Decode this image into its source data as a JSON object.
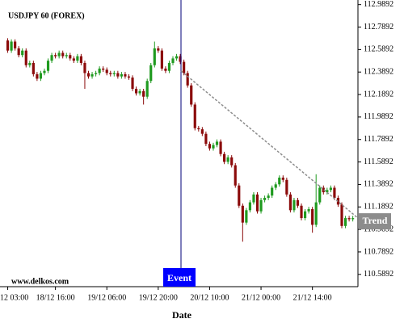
{
  "chart_data": {
    "type": "candlestick",
    "title": "USDJPY 60 (FOREX)",
    "xlabel": "Date",
    "watermark": "www.delkos.com",
    "up_color": "#1f9a1f",
    "down_color": "#8b0a0a",
    "x": [
      0,
      1,
      2,
      3,
      4,
      5,
      6,
      7,
      8,
      9,
      10,
      11,
      12,
      13,
      14,
      15,
      16,
      17,
      18,
      19,
      20,
      21,
      22,
      23,
      24,
      25,
      26,
      27,
      28,
      29,
      30,
      31,
      32,
      33,
      34,
      35,
      36,
      37,
      38,
      39,
      40,
      41,
      42,
      43,
      44,
      45,
      46,
      47,
      48,
      49,
      50,
      51,
      52,
      53,
      54,
      55,
      56,
      57,
      58,
      59,
      60,
      61,
      62,
      63,
      64,
      65,
      66,
      67,
      68,
      69,
      70,
      71,
      72,
      73,
      74,
      75,
      76,
      77,
      78,
      79,
      80,
      81,
      82,
      83,
      84,
      85,
      86,
      87,
      88,
      89,
      90,
      91,
      92,
      93,
      94
    ],
    "open": [
      112.67,
      112.58,
      112.66,
      112.6,
      112.54,
      112.58,
      112.45,
      112.47,
      112.37,
      112.33,
      112.38,
      112.4,
      112.49,
      112.54,
      112.53,
      112.56,
      112.53,
      112.54,
      112.51,
      112.49,
      112.53,
      112.47,
      112.38,
      112.35,
      112.37,
      112.38,
      112.42,
      112.41,
      112.38,
      112.37,
      112.38,
      112.35,
      112.37,
      112.35,
      112.34,
      112.24,
      112.2,
      112.22,
      112.17,
      112.31,
      112.45,
      112.6,
      112.58,
      112.42,
      112.4,
      112.47,
      112.51,
      112.53,
      112.48,
      112.38,
      112.27,
      112.1,
      111.89,
      111.88,
      111.84,
      111.75,
      111.71,
      111.74,
      111.77,
      111.66,
      111.59,
      111.63,
      111.56,
      111.38,
      111.2,
      111.05,
      111.16,
      111.23,
      111.3,
      111.15,
      111.25,
      111.27,
      111.29,
      111.36,
      111.39,
      111.45,
      111.43,
      111.3,
      111.16,
      111.25,
      111.2,
      111.09,
      111.15,
      111.17,
      111.03,
      111.23,
      111.36,
      111.32,
      111.34,
      111.36,
      111.27,
      111.21,
      111.02,
      111.09,
      111.08
    ],
    "high": [
      112.69,
      112.68,
      112.68,
      112.62,
      112.6,
      112.6,
      112.49,
      112.49,
      112.39,
      112.4,
      112.42,
      112.51,
      112.56,
      112.56,
      112.58,
      112.58,
      112.56,
      112.56,
      112.53,
      112.55,
      112.55,
      112.49,
      112.4,
      112.39,
      112.4,
      112.44,
      112.44,
      112.43,
      112.4,
      112.4,
      112.4,
      112.39,
      112.39,
      112.37,
      112.36,
      112.26,
      112.24,
      112.24,
      112.33,
      112.47,
      112.66,
      112.62,
      112.6,
      112.44,
      112.49,
      112.53,
      112.55,
      112.55,
      112.5,
      112.4,
      112.29,
      112.12,
      111.91,
      111.9,
      111.86,
      111.77,
      111.76,
      111.79,
      111.79,
      111.68,
      111.65,
      111.65,
      111.58,
      111.4,
      111.22,
      111.18,
      111.25,
      111.32,
      111.32,
      111.27,
      111.29,
      111.31,
      111.38,
      111.41,
      111.47,
      111.47,
      111.45,
      111.32,
      111.27,
      111.27,
      111.22,
      111.17,
      111.19,
      111.19,
      111.48,
      111.38,
      111.38,
      111.36,
      111.38,
      111.38,
      111.29,
      111.23,
      111.11,
      111.11,
      111.11
    ],
    "low": [
      112.56,
      112.56,
      112.58,
      112.52,
      112.52,
      112.43,
      112.43,
      112.35,
      112.31,
      112.31,
      112.36,
      112.38,
      112.47,
      112.51,
      112.51,
      112.51,
      112.51,
      112.49,
      112.47,
      112.47,
      112.45,
      112.24,
      112.33,
      112.33,
      112.35,
      112.36,
      112.39,
      112.36,
      112.35,
      112.35,
      112.33,
      112.33,
      112.33,
      112.32,
      112.22,
      112.18,
      112.18,
      112.1,
      112.15,
      112.29,
      112.43,
      112.56,
      112.4,
      112.38,
      112.38,
      112.45,
      112.49,
      112.46,
      112.36,
      112.25,
      112.08,
      111.87,
      111.86,
      111.82,
      111.73,
      111.69,
      111.69,
      111.72,
      111.64,
      111.57,
      111.57,
      111.54,
      111.36,
      111.18,
      110.88,
      111.03,
      111.14,
      111.21,
      111.13,
      111.13,
      111.23,
      111.25,
      111.27,
      111.34,
      111.37,
      111.41,
      111.28,
      111.14,
      111.14,
      111.18,
      111.07,
      111.07,
      111.13,
      110.96,
      111.01,
      111.21,
      111.3,
      111.3,
      111.32,
      111.25,
      111.19,
      111.0,
      111.0,
      111.06,
      111.06
    ],
    "close": [
      112.58,
      112.66,
      112.6,
      112.54,
      112.58,
      112.45,
      112.47,
      112.37,
      112.33,
      112.38,
      112.4,
      112.49,
      112.54,
      112.53,
      112.56,
      112.53,
      112.54,
      112.51,
      112.49,
      112.53,
      112.47,
      112.38,
      112.35,
      112.37,
      112.38,
      112.42,
      112.41,
      112.38,
      112.37,
      112.38,
      112.35,
      112.37,
      112.35,
      112.34,
      112.24,
      112.2,
      112.22,
      112.17,
      112.31,
      112.45,
      112.6,
      112.58,
      112.42,
      112.4,
      112.47,
      112.51,
      112.53,
      112.48,
      112.38,
      112.27,
      112.1,
      111.89,
      111.88,
      111.84,
      111.75,
      111.71,
      111.74,
      111.77,
      111.66,
      111.59,
      111.63,
      111.56,
      111.38,
      111.2,
      111.05,
      111.16,
      111.23,
      111.3,
      111.15,
      111.25,
      111.27,
      111.29,
      111.36,
      111.39,
      111.45,
      111.43,
      111.3,
      111.16,
      111.25,
      111.2,
      111.09,
      111.15,
      111.17,
      111.03,
      111.23,
      111.36,
      111.32,
      111.34,
      111.36,
      111.27,
      111.21,
      111.02,
      111.09,
      111.08,
      111.09
    ],
    "xlim": [
      -1,
      95.4
    ],
    "ylim": [
      110.48,
      113.03
    ],
    "yticks": [
      112.9892,
      112.7892,
      112.5892,
      112.3892,
      112.1892,
      111.9892,
      111.7892,
      111.5892,
      111.3892,
      111.1892,
      110.9892,
      110.7892,
      110.5892
    ],
    "xticks": [
      {
        "value": 0,
        "label": "12 03:00"
      },
      {
        "value": 13,
        "label": "18/12 16:00"
      },
      {
        "value": 27,
        "label": "19/12 06:00"
      },
      {
        "value": 41,
        "label": "19/12 20:00"
      },
      {
        "value": 55,
        "label": "20/12 10:00"
      },
      {
        "value": 69,
        "label": "21/12 00:00"
      },
      {
        "value": 83,
        "label": "21/12 14:00"
      }
    ],
    "event": {
      "label": "Event",
      "x": 47.2,
      "color": "#0000ff"
    },
    "trend": {
      "label": "Trend",
      "x": [
        47.2,
        95.4
      ],
      "y": [
        112.4,
        111.09
      ],
      "color": "#8c8c8c"
    }
  }
}
